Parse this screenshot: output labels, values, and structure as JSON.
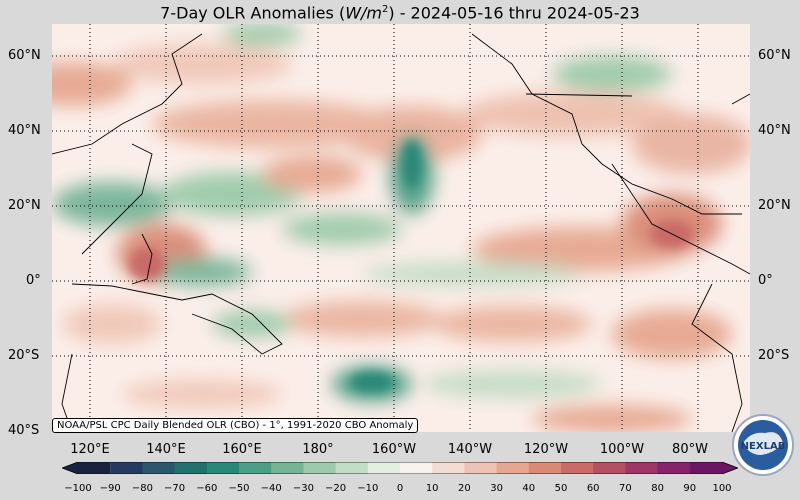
{
  "title": {
    "prefix": "7-Day OLR Anomalies (",
    "unit_base": "W/m",
    "unit_exp": "2",
    "suffix": ") - 2024-05-16 thru 2024-05-23"
  },
  "credit": "NOAA/PSL CPC Daily Blended OLR (CBO) - 1°, 1991-2020 CBO Anomaly",
  "lat_labels": [
    "60°N",
    "40°N",
    "20°N",
    "0°",
    "20°S",
    "40°S"
  ],
  "lon_labels": [
    "120°E",
    "140°E",
    "160°E",
    "180°",
    "160°W",
    "140°W",
    "120°W",
    "100°W",
    "80°W"
  ],
  "colorbar": {
    "ticks": [
      "−100",
      "−90",
      "−80",
      "−70",
      "−60",
      "−50",
      "−40",
      "−30",
      "−20",
      "−10",
      "0",
      "10",
      "20",
      "30",
      "40",
      "50",
      "60",
      "70",
      "80",
      "90",
      "100"
    ],
    "colors": [
      "#1b2240",
      "#253a5e",
      "#2b566e",
      "#23706e",
      "#2a8878",
      "#4e9e86",
      "#76b497",
      "#9ccaaa",
      "#c2dcc5",
      "#e4eee3",
      "#f9f3f0",
      "#f3dcd2",
      "#eec3b3",
      "#e6a790",
      "#d98a75",
      "#c96b67",
      "#b45063",
      "#9c3767",
      "#85246a",
      "#6a1662"
    ]
  },
  "logo_text": "NEXLAB",
  "colors": {
    "background": "#d9d9d9",
    "neutral": "#fbeee9",
    "negative": "#3f8f76",
    "positive": "#cf7d68"
  }
}
